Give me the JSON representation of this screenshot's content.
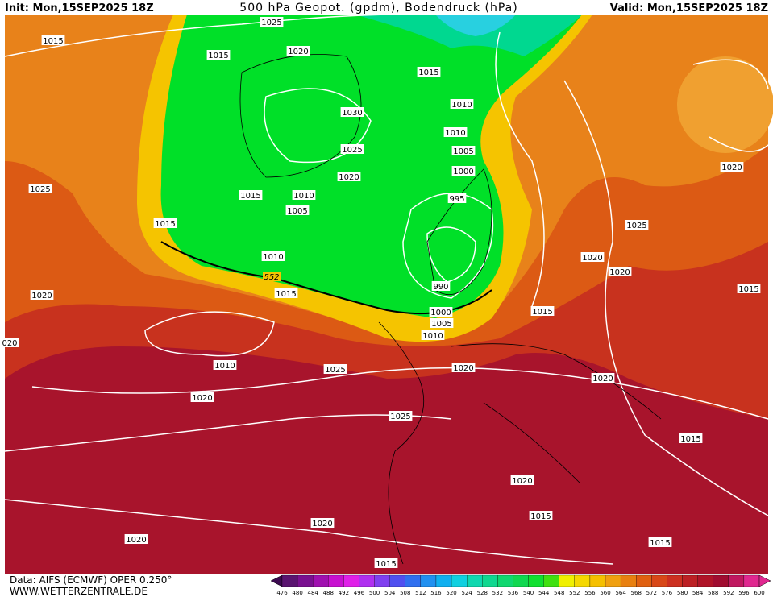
{
  "header": {
    "init": "Init: Mon,15SEP2025 18Z",
    "title": "500 hPa Geopot. (gpdm), Bodendruck (hPa)",
    "valid": "Valid: Mon,15SEP2025 18Z"
  },
  "map": {
    "contour_label": "552",
    "isobar_labels": [
      "1025",
      "1015",
      "1020",
      "1015",
      "1015",
      "1010",
      "1030",
      "1010",
      "1025",
      "1005",
      "1020",
      "1000",
      "1020",
      "1025",
      "1015",
      "1010",
      "995",
      "1005",
      "1015",
      "1025",
      "1010",
      "1020",
      "1020",
      "990",
      "1015",
      "1015",
      "1020",
      "1015",
      "1000",
      "1005",
      "1010",
      "020",
      "1010",
      "1020",
      "1025",
      "1020",
      "1020",
      "1025",
      "1015",
      "1020",
      "1015",
      "1020",
      "1020",
      "1015",
      "1015"
    ]
  },
  "colorbar": {
    "labels": [
      "476",
      "480",
      "484",
      "488",
      "492",
      "496",
      "500",
      "504",
      "508",
      "512",
      "516",
      "520",
      "524",
      "528",
      "532",
      "536",
      "540",
      "544",
      "548",
      "552",
      "556",
      "560",
      "564",
      "568",
      "572",
      "576",
      "580",
      "584",
      "588",
      "592",
      "596",
      "600"
    ]
  },
  "footer": {
    "source": "Data: AIFS (ECMWF) OPER 0.250°",
    "site": "WWW.WETTERZENTRALE.DE"
  }
}
